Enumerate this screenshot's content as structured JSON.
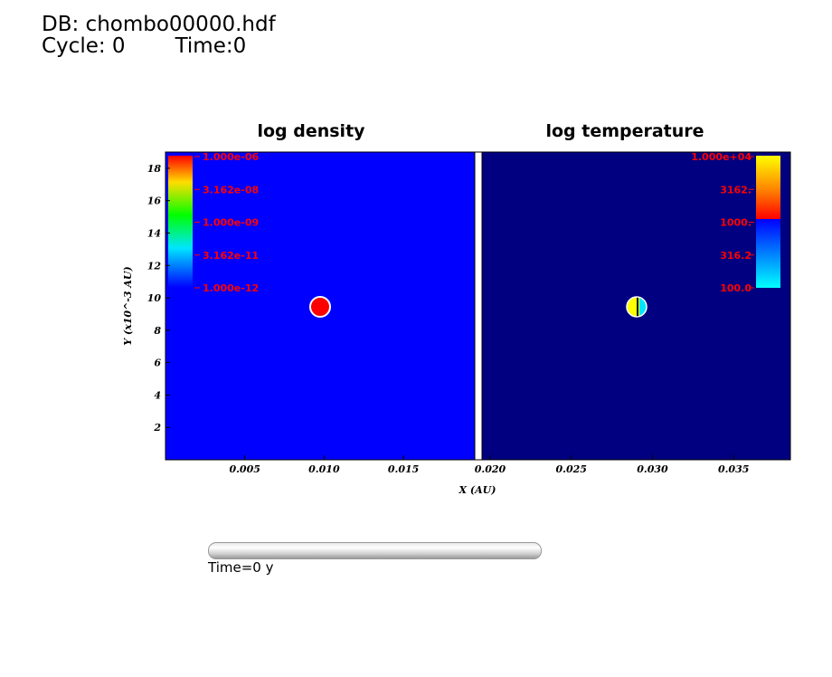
{
  "header": {
    "db": "DB: chombo00000.hdf",
    "cycle": "Cycle: 0",
    "time": "Time:0"
  },
  "slider": {
    "label": "Time=0 y",
    "value": 0
  },
  "colors": {
    "density_bg": "#0000ff",
    "temperature_bg": "#000080",
    "density_blob": "#ff0000",
    "colorbar_text": "#ff0000"
  },
  "chart_data": [
    {
      "type": "heatmap",
      "title": "log density",
      "xlabel": "X (AU)",
      "ylabel": "Y (x10^-3 AU)",
      "xlim": [
        0,
        0.0195
      ],
      "ylim": [
        0,
        19
      ],
      "xticks": [
        "0.005",
        "0.010",
        "0.015"
      ],
      "yticks": [
        "2",
        "4",
        "6",
        "8",
        "10",
        "12",
        "14",
        "16",
        "18"
      ],
      "background_value": "1.000e-12",
      "feature": {
        "shape": "circle",
        "x": 0.0095,
        "y": 9.4,
        "value": "1.000e-06"
      },
      "colorbar": {
        "position": "top-left",
        "labels": [
          "1.000e-06",
          "3.162e-08",
          "1.000e-09",
          "3.162e-11",
          "1.000e-12"
        ]
      }
    },
    {
      "type": "heatmap",
      "title": "log temperature",
      "xlabel": "X (AU)",
      "xlim": [
        0.0195,
        0.0385
      ],
      "ylim": [
        0,
        19
      ],
      "xticks": [
        "0.020",
        "0.025",
        "0.030",
        "0.035"
      ],
      "feature": {
        "shape": "circle",
        "x": 0.0291,
        "y": 9.4,
        "left_half": "yellow",
        "right_half": "cyan"
      },
      "colorbar": {
        "position": "top-right",
        "labels": [
          "1.000e+04",
          "3162.",
          "1000.",
          "316.2",
          "100.0"
        ]
      }
    }
  ]
}
